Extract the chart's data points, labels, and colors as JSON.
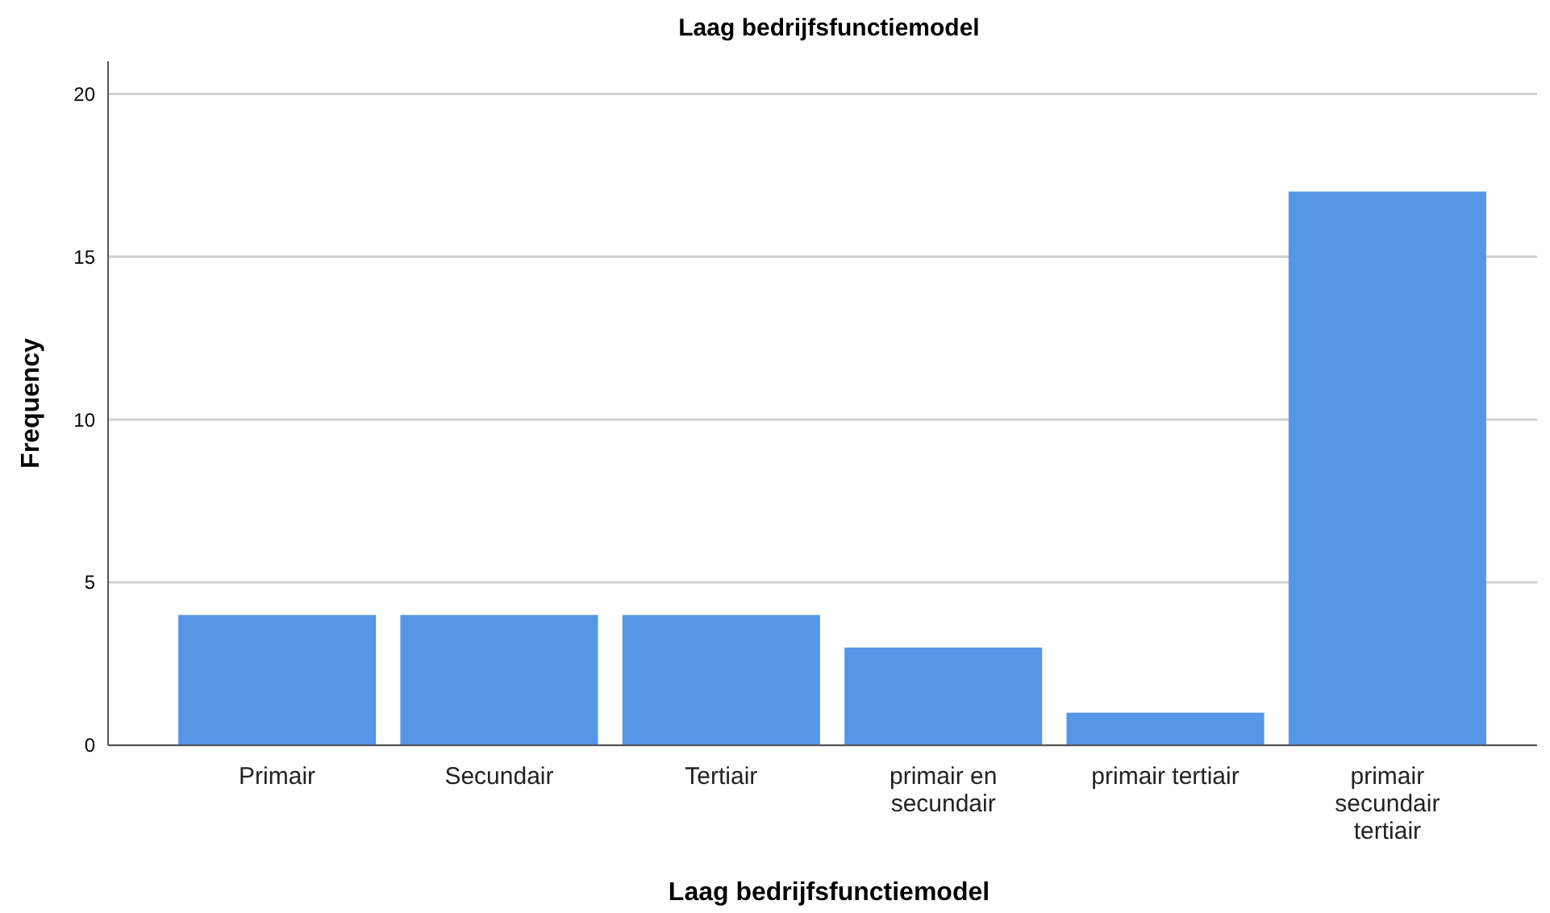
{
  "chart_data": {
    "type": "bar",
    "title": "Laag bedrijfsfunctiemodel",
    "xlabel": "Laag bedrijfsfunctiemodel",
    "ylabel": "Frequency",
    "categories": [
      "Primair",
      "Secundair",
      "Tertiair",
      "primair en secundair",
      "primair tertiair",
      "primair secundair tertiair"
    ],
    "values": [
      4,
      4,
      4,
      3,
      1,
      17
    ],
    "color": "#5596e6",
    "ylim": [
      0,
      21
    ],
    "yticks": [
      0,
      5,
      10,
      15,
      20
    ],
    "grid": "y"
  }
}
